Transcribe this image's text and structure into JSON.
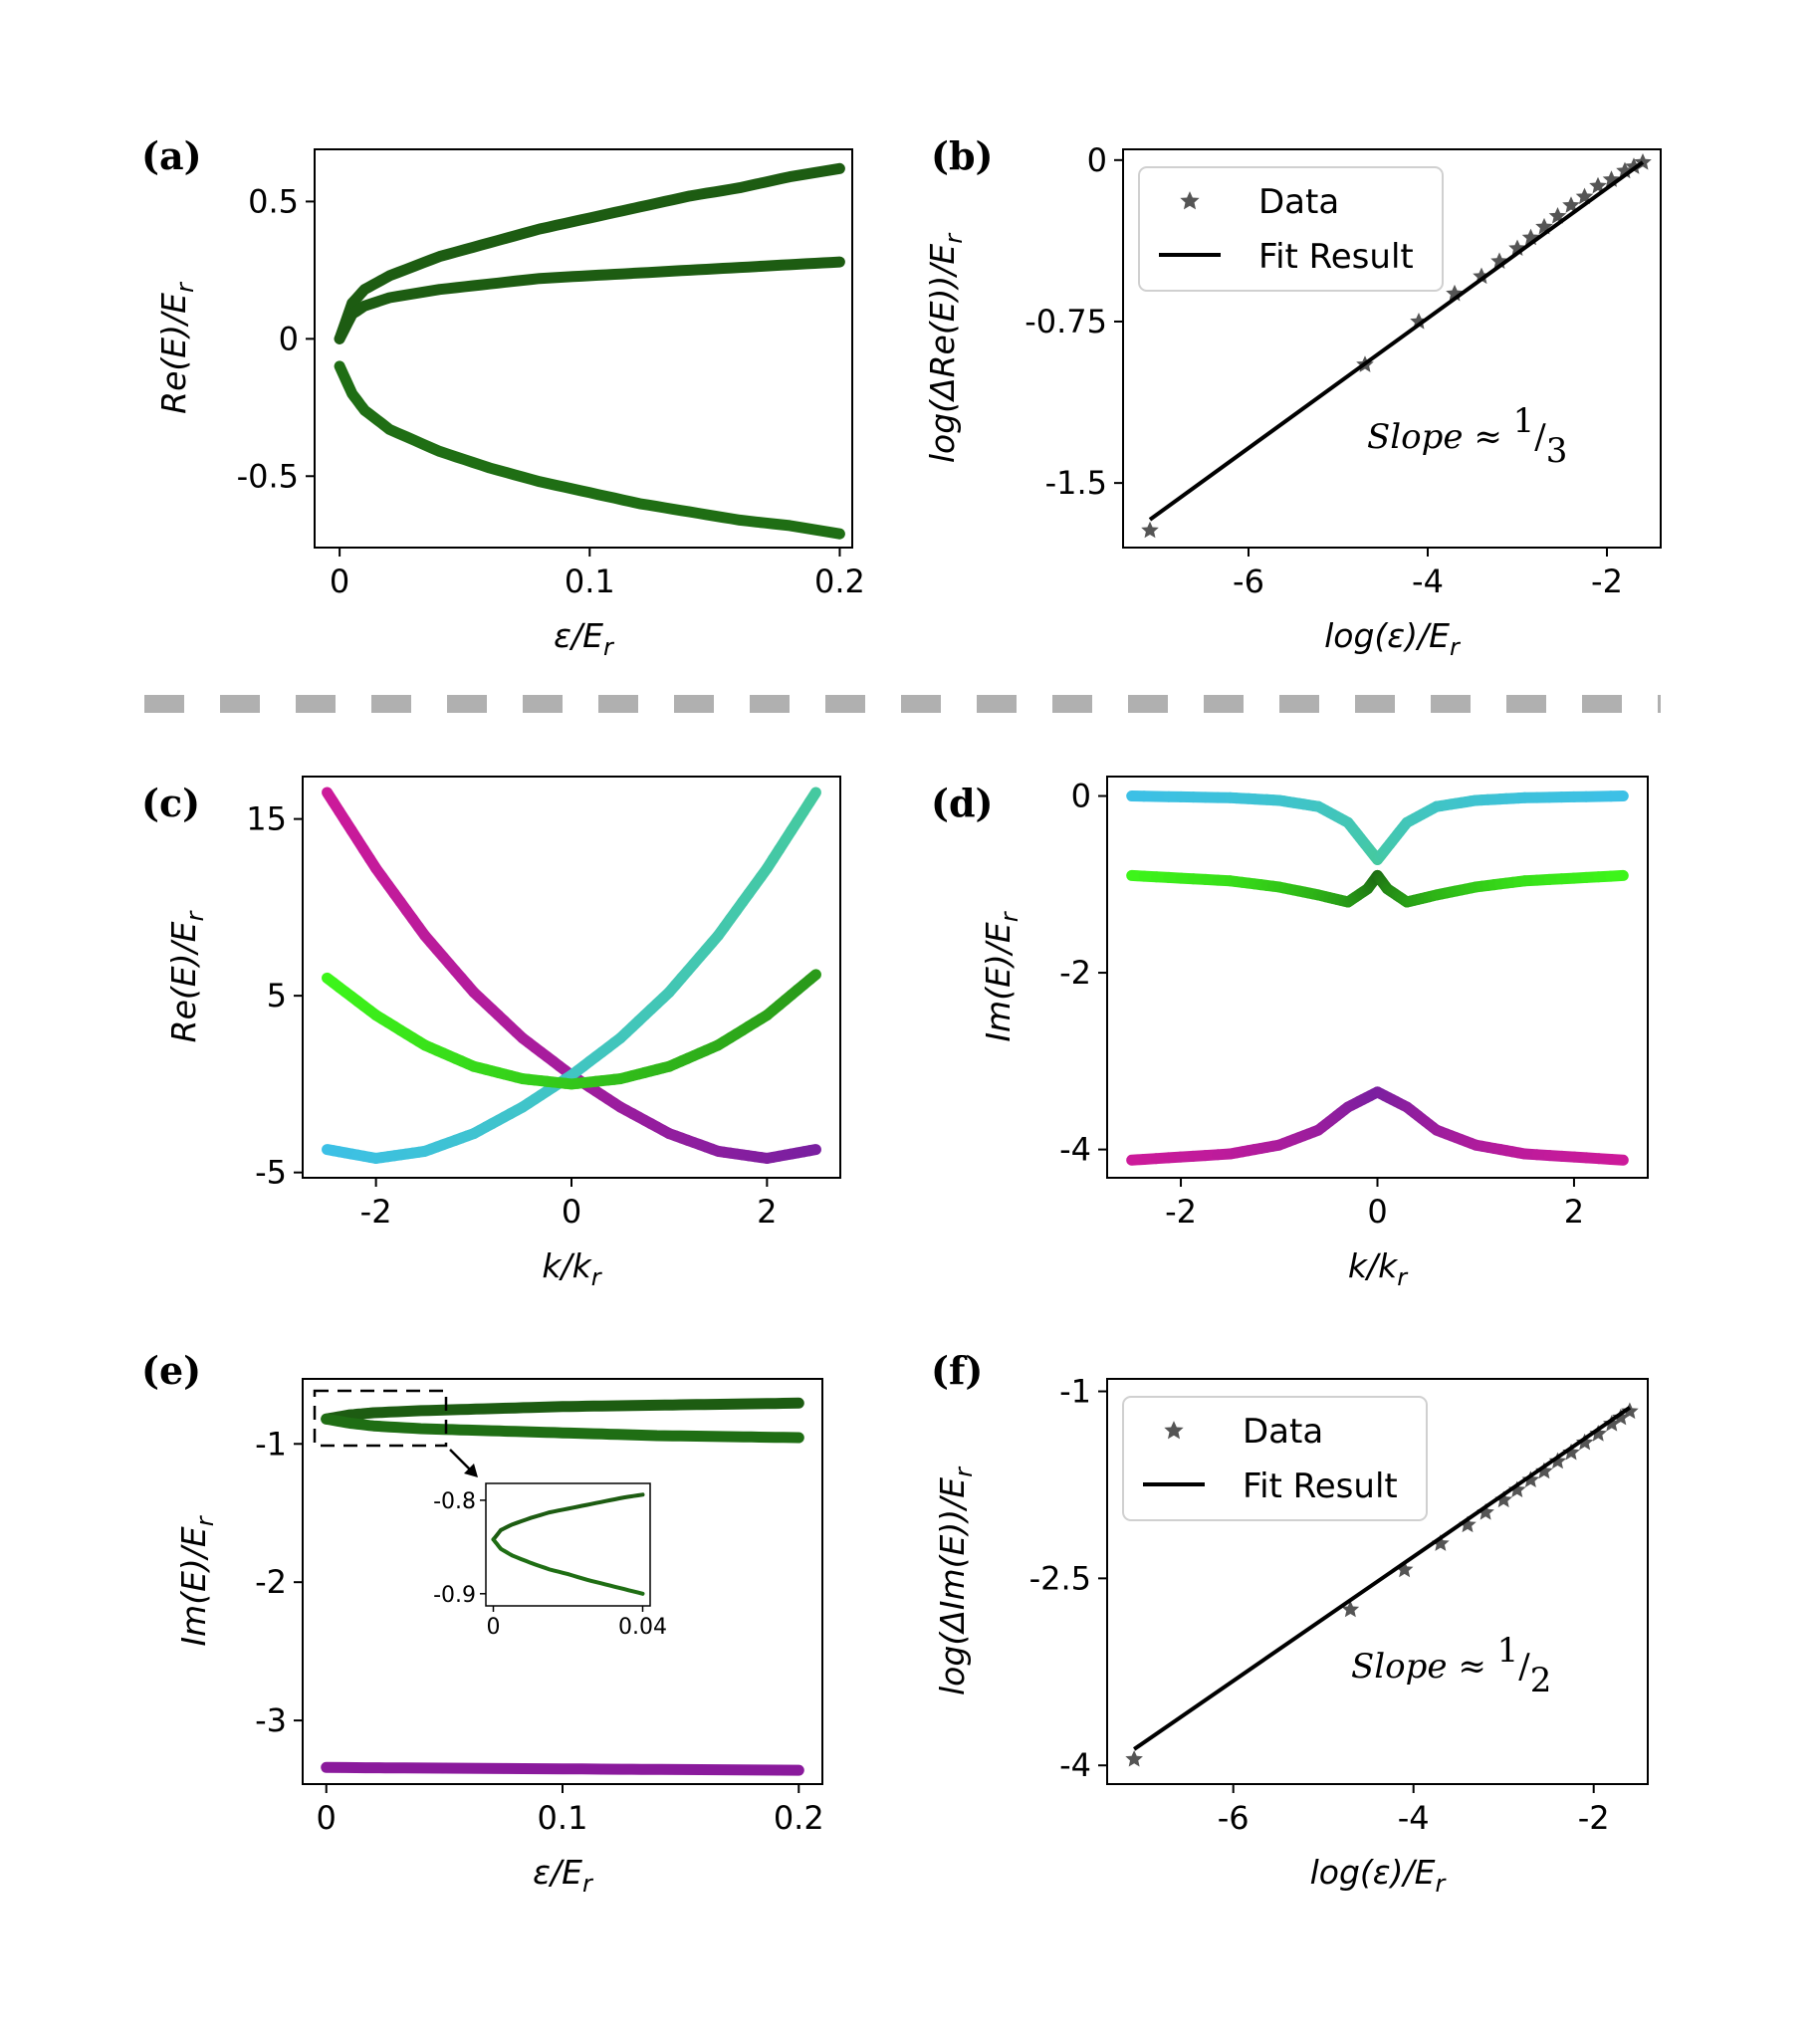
{
  "chart_data": [
    {
      "panel": "(a)",
      "type": "scatter",
      "xlabel": "ε/E",
      "xlabel_sub": "r",
      "ylabel": "Re(E)/E",
      "ylabel_sub": "r",
      "xlim": [
        -0.01,
        0.205
      ],
      "ylim": [
        -0.76,
        0.69
      ],
      "xticks": [
        0,
        0.1,
        0.2
      ],
      "xtick_labels": [
        "0",
        "0.1",
        "0.2"
      ],
      "yticks": [
        0.5,
        0,
        -0.5
      ],
      "ytick_labels": [
        "0.5",
        "0",
        "-0.5"
      ],
      "series": [
        {
          "name": "upper branch",
          "color": "#1d5c12",
          "x": [
            0,
            0.005,
            0.01,
            0.02,
            0.04,
            0.06,
            0.08,
            0.1,
            0.12,
            0.14,
            0.16,
            0.18,
            0.2
          ],
          "y": [
            0.0,
            0.13,
            0.18,
            0.23,
            0.3,
            0.35,
            0.4,
            0.44,
            0.48,
            0.52,
            0.55,
            0.59,
            0.62
          ]
        },
        {
          "name": "middle branch",
          "color": "#1d5c12",
          "x": [
            0,
            0.005,
            0.01,
            0.02,
            0.04,
            0.06,
            0.08,
            0.1,
            0.12,
            0.14,
            0.16,
            0.18,
            0.2
          ],
          "y": [
            0.0,
            0.09,
            0.12,
            0.15,
            0.18,
            0.2,
            0.22,
            0.23,
            0.24,
            0.25,
            0.26,
            0.27,
            0.28
          ]
        },
        {
          "name": "lower branch",
          "color": "#1f6e14",
          "x": [
            0,
            0.005,
            0.01,
            0.02,
            0.04,
            0.06,
            0.08,
            0.1,
            0.12,
            0.14,
            0.16,
            0.18,
            0.2
          ],
          "y": [
            -0.1,
            -0.2,
            -0.26,
            -0.33,
            -0.41,
            -0.47,
            -0.52,
            -0.56,
            -0.6,
            -0.63,
            -0.66,
            -0.68,
            -0.71
          ]
        }
      ]
    },
    {
      "panel": "(b)",
      "type": "scatter",
      "xlabel": "log(ε)/E",
      "xlabel_sub": "r",
      "ylabel": "log(ΔRe(E))/E",
      "ylabel_sub": "r",
      "xlim": [
        -7.4,
        -1.4
      ],
      "ylim": [
        -1.8,
        0.05
      ],
      "xticks": [
        -6,
        -4,
        -2
      ],
      "xtick_labels": [
        "-6",
        "-4",
        "-2"
      ],
      "yticks": [
        0,
        -0.75,
        -1.5
      ],
      "ytick_labels": [
        "0",
        "-0.75",
        "-1.5"
      ],
      "legend": [
        {
          "label": "Data",
          "marker": "star"
        },
        {
          "label": "Fit Result",
          "marker": "line"
        }
      ],
      "annotation": {
        "text": "Slope ≈ ",
        "num": "1",
        "den": "3"
      },
      "series": [
        {
          "name": "Data",
          "color": "#555555",
          "x": [
            -7.1,
            -4.7,
            -4.1,
            -3.7,
            -3.4,
            -3.2,
            -3.0,
            -2.85,
            -2.7,
            -2.55,
            -2.4,
            -2.25,
            -2.1,
            -1.95,
            -1.8,
            -1.7,
            -1.6
          ],
          "y": [
            -1.72,
            -0.95,
            -0.75,
            -0.62,
            -0.54,
            -0.47,
            -0.41,
            -0.36,
            -0.31,
            -0.26,
            -0.21,
            -0.17,
            -0.12,
            -0.09,
            -0.05,
            -0.03,
            -0.01
          ]
        },
        {
          "name": "Fit Result",
          "color": "#000000",
          "x": [
            -7.1,
            -1.6
          ],
          "y": [
            -1.67,
            -0.01
          ]
        }
      ]
    },
    {
      "panel": "(c)",
      "type": "line",
      "xlabel": "k/k",
      "xlabel_sub": "r",
      "ylabel": "Re(E)/E",
      "ylabel_sub": "r",
      "xlim": [
        -2.75,
        2.75
      ],
      "ylim": [
        -5.3,
        17.4
      ],
      "xticks": [
        -2,
        0,
        2
      ],
      "xtick_labels": [
        "-2",
        "0",
        "2"
      ],
      "yticks": [
        15,
        5,
        -5
      ],
      "ytick_labels": [
        "15",
        "5",
        "-5"
      ],
      "series": [
        {
          "name": "magenta",
          "color_start": "#cc1a9a",
          "color_end": "#7a1fa0",
          "x": [
            -2.5,
            -2.0,
            -1.5,
            -1.0,
            -0.5,
            0,
            0.5,
            1.0,
            1.5,
            2.0,
            2.5
          ],
          "y": [
            16.5,
            12.2,
            8.4,
            5.2,
            2.6,
            0.5,
            -1.3,
            -2.8,
            -3.8,
            -4.2,
            -3.7
          ]
        },
        {
          "name": "cyan",
          "color_start": "#3cc0e6",
          "color_end": "#45c9a0",
          "x": [
            -2.5,
            -2.0,
            -1.5,
            -1.0,
            -0.5,
            0,
            0.5,
            1.0,
            1.5,
            2.0,
            2.5
          ],
          "y": [
            -3.7,
            -4.2,
            -3.8,
            -2.8,
            -1.3,
            0.5,
            2.6,
            5.2,
            8.4,
            12.2,
            16.5
          ]
        },
        {
          "name": "green",
          "color_start": "#3df51a",
          "color_end": "#2a9a1a",
          "x": [
            -2.5,
            -2.0,
            -1.5,
            -1.0,
            -0.5,
            0,
            0.5,
            1.0,
            1.5,
            2.0,
            2.5
          ],
          "y": [
            6.0,
            3.9,
            2.2,
            1.0,
            0.3,
            0.0,
            0.3,
            1.0,
            2.2,
            3.9,
            6.2
          ]
        }
      ]
    },
    {
      "panel": "(d)",
      "type": "line",
      "xlabel": "k/k",
      "xlabel_sub": "r",
      "ylabel": "Im(E)/E",
      "ylabel_sub": "r",
      "xlim": [
        -2.75,
        2.75
      ],
      "ylim": [
        -4.32,
        0.22
      ],
      "xticks": [
        -2,
        0,
        2
      ],
      "xtick_labels": [
        "-2",
        "0",
        "2"
      ],
      "yticks": [
        0,
        -2,
        -4
      ],
      "ytick_labels": [
        "0",
        "-2",
        "-4"
      ],
      "series": [
        {
          "name": "cyan",
          "color_start": "#3cc0e6",
          "color_end": "#45c9a0",
          "x": [
            -2.5,
            -1.5,
            -1.0,
            -0.6,
            -0.3,
            -0.1,
            0,
            0.1,
            0.3,
            0.6,
            1.0,
            1.5,
            2.5
          ],
          "y": [
            0.0,
            -0.02,
            -0.05,
            -0.12,
            -0.3,
            -0.58,
            -0.72,
            -0.58,
            -0.3,
            -0.12,
            -0.05,
            -0.02,
            0.0
          ]
        },
        {
          "name": "green",
          "color_start": "#3df51a",
          "color_end": "#1d6e14",
          "x": [
            -2.5,
            -1.5,
            -1.0,
            -0.6,
            -0.3,
            -0.1,
            0,
            0.1,
            0.3,
            0.6,
            1.0,
            1.5,
            2.5
          ],
          "y": [
            -0.9,
            -0.96,
            -1.03,
            -1.12,
            -1.2,
            -1.05,
            -0.9,
            -1.05,
            -1.2,
            -1.12,
            -1.03,
            -0.96,
            -0.9
          ]
        },
        {
          "name": "magenta",
          "color_start": "#cc1a9a",
          "color_end": "#7a1fa0",
          "x": [
            -2.5,
            -1.5,
            -1.0,
            -0.6,
            -0.3,
            0,
            0.3,
            0.6,
            1.0,
            1.5,
            2.5
          ],
          "y": [
            -4.12,
            -4.05,
            -3.95,
            -3.78,
            -3.52,
            -3.35,
            -3.52,
            -3.78,
            -3.95,
            -4.05,
            -4.12
          ]
        }
      ]
    },
    {
      "panel": "(e)",
      "type": "scatter",
      "xlabel": "ε/E",
      "xlabel_sub": "r",
      "ylabel": "Im(E)/E",
      "ylabel_sub": "r",
      "xlim": [
        -0.01,
        0.21
      ],
      "ylim": [
        -3.46,
        -0.53
      ],
      "xticks": [
        0,
        0.1,
        0.2
      ],
      "xtick_labels": [
        "0",
        "0.1",
        "0.2"
      ],
      "yticks": [
        -1,
        -2,
        -3
      ],
      "ytick_labels": [
        "-1",
        "-2",
        "-3"
      ],
      "series": [
        {
          "name": "upper branch",
          "color": "#1d5c12",
          "x": [
            0,
            0.01,
            0.02,
            0.04,
            0.06,
            0.08,
            0.1,
            0.12,
            0.14,
            0.16,
            0.18,
            0.2
          ],
          "y": [
            -0.82,
            -0.79,
            -0.775,
            -0.76,
            -0.75,
            -0.74,
            -0.73,
            -0.725,
            -0.72,
            -0.715,
            -0.71,
            -0.705
          ]
        },
        {
          "name": "lower branch",
          "color": "#1f6e14",
          "x": [
            0,
            0.01,
            0.02,
            0.04,
            0.06,
            0.08,
            0.1,
            0.12,
            0.14,
            0.16,
            0.18,
            0.2
          ],
          "y": [
            -0.82,
            -0.85,
            -0.87,
            -0.89,
            -0.9,
            -0.91,
            -0.92,
            -0.93,
            -0.94,
            -0.945,
            -0.95,
            -0.955
          ]
        },
        {
          "name": "purple branch",
          "color": "#8a1a9c",
          "x": [
            0,
            0.05,
            0.1,
            0.15,
            0.2
          ],
          "y": [
            -3.34,
            -3.345,
            -3.35,
            -3.355,
            -3.36
          ]
        }
      ],
      "inset": {
        "xlim": [
          -0.002,
          0.042
        ],
        "ylim": [
          -0.913,
          -0.782
        ],
        "xticks": [
          0,
          0.04
        ],
        "xtick_labels": [
          "0",
          "0.04"
        ],
        "yticks": [
          -0.8,
          -0.9
        ],
        "ytick_labels": [
          "-0.8",
          "-0.9"
        ],
        "series": [
          {
            "name": "upper",
            "color": "#1d5c12",
            "x": [
              0,
              0.002,
              0.005,
              0.01,
              0.015,
              0.02,
              0.025,
              0.03,
              0.035,
              0.04
            ],
            "y": [
              -0.842,
              -0.832,
              -0.826,
              -0.819,
              -0.813,
              -0.809,
              -0.805,
              -0.801,
              -0.797,
              -0.794
            ]
          },
          {
            "name": "lower",
            "color": "#1f6e14",
            "x": [
              0,
              0.002,
              0.005,
              0.01,
              0.015,
              0.02,
              0.025,
              0.03,
              0.035,
              0.04
            ],
            "y": [
              -0.842,
              -0.852,
              -0.859,
              -0.867,
              -0.874,
              -0.879,
              -0.885,
              -0.89,
              -0.895,
              -0.9
            ]
          }
        ]
      }
    },
    {
      "panel": "(f)",
      "type": "scatter",
      "xlabel": "log(ε)/E",
      "xlabel_sub": "r",
      "ylabel": "log(ΔIm(E))/E",
      "ylabel_sub": "r",
      "xlim": [
        -7.4,
        -1.4
      ],
      "ylim": [
        -4.15,
        -0.9
      ],
      "xticks": [
        -6,
        -4,
        -2
      ],
      "xtick_labels": [
        "-6",
        "-4",
        "-2"
      ],
      "yticks": [
        -1,
        -2.5,
        -4
      ],
      "ytick_labels": [
        "-1",
        "-2.5",
        "-4"
      ],
      "legend": [
        {
          "label": "Data",
          "marker": "star"
        },
        {
          "label": "Fit Result",
          "marker": "line"
        }
      ],
      "annotation": {
        "text": "Slope ≈ ",
        "num": "1",
        "den": "2"
      },
      "series": [
        {
          "name": "Data",
          "color": "#555555",
          "x": [
            -7.1,
            -4.7,
            -4.1,
            -3.7,
            -3.4,
            -3.2,
            -3.0,
            -2.85,
            -2.7,
            -2.55,
            -2.4,
            -2.25,
            -2.1,
            -1.95,
            -1.8,
            -1.7,
            -1.6
          ],
          "y": [
            -3.95,
            -2.75,
            -2.43,
            -2.22,
            -2.07,
            -1.97,
            -1.87,
            -1.79,
            -1.71,
            -1.64,
            -1.56,
            -1.49,
            -1.41,
            -1.34,
            -1.26,
            -1.21,
            -1.16
          ]
        },
        {
          "name": "Fit Result",
          "color": "#000000",
          "x": [
            -7.1,
            -1.6
          ],
          "y": [
            -3.87,
            -1.13
          ]
        }
      ]
    }
  ]
}
